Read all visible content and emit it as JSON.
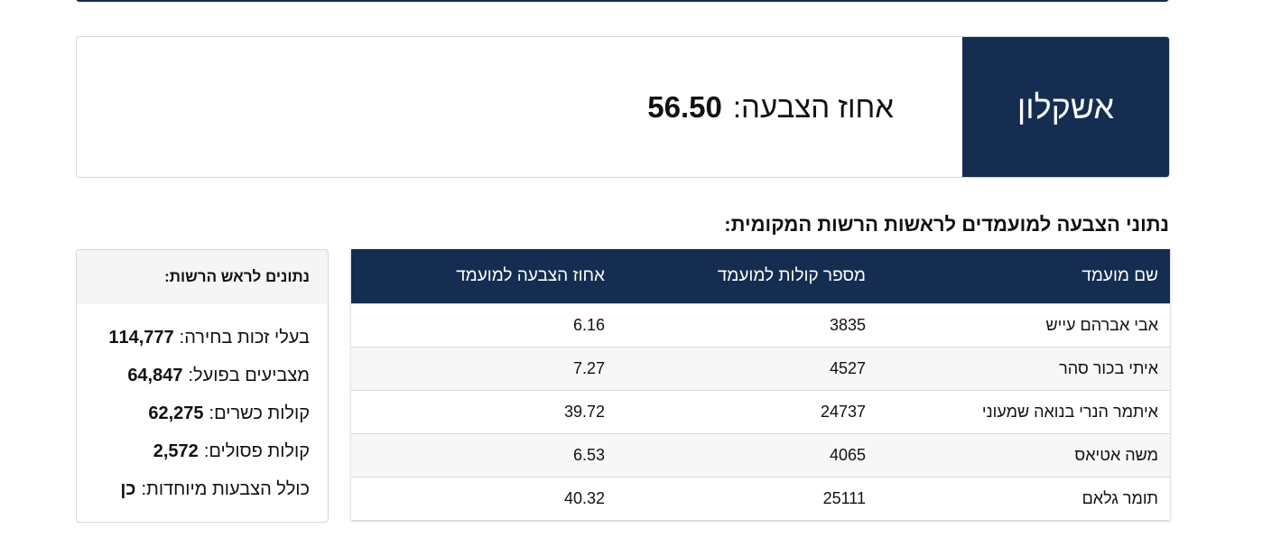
{
  "header": {
    "city": "אשקלון",
    "turnout_label": "אחוז הצבעה:",
    "turnout_value": "56.50"
  },
  "section_title": "נתוני הצבעה למועמדים לראשות הרשות המקומית:",
  "table": {
    "columns": [
      "שם מועמד",
      "מספר קולות למועמד",
      "אחוז הצבעה למועמד"
    ],
    "rows": [
      [
        "אבי אברהם עייש",
        "3835",
        "6.16"
      ],
      [
        "איתי בכור סהר",
        "4527",
        "7.27"
      ],
      [
        "איתמר הנרי בנואה שמעוני",
        "24737",
        "39.72"
      ],
      [
        "משה אטיאס",
        "4065",
        "6.53"
      ],
      [
        "תומר גלאם",
        "25111",
        "40.32"
      ]
    ]
  },
  "side": {
    "title": "נתונים לראש הרשות:",
    "stats": [
      {
        "label": "בעלי זכות בחירה:",
        "value": "114,777"
      },
      {
        "label": "מצביעים בפועל:",
        "value": "64,847"
      },
      {
        "label": "קולות כשרים:",
        "value": "62,275"
      },
      {
        "label": "קולות פסולים:",
        "value": "2,572"
      },
      {
        "label": "כולל הצבעות מיוחדות:",
        "value": "כן"
      }
    ]
  },
  "colors": {
    "primary": "#142d50"
  }
}
